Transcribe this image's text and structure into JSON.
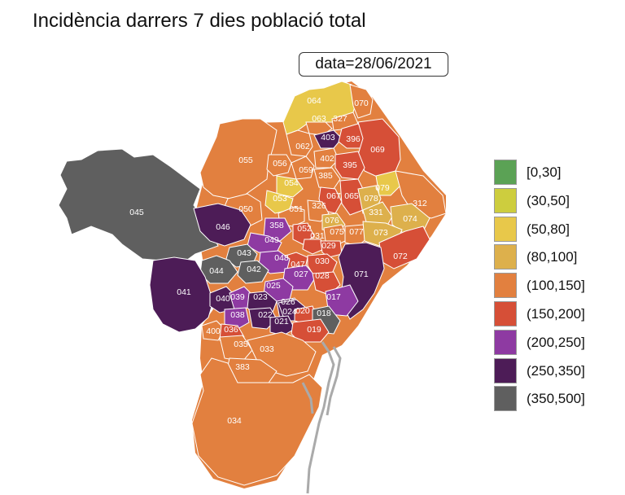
{
  "title": "Incidència darrers 7 dies població total",
  "date_label": "data=28/06/2021",
  "colors": {
    "c0": "#5ba255",
    "c1": "#cdcd3e",
    "c2": "#e8c84a",
    "c3": "#ddb04c",
    "c4": "#e2803f",
    "c5": "#d64f37",
    "c6": "#8e3aa2",
    "c7": "#4d1c57",
    "c8": "#5f5f5f",
    "port": "#aaaaaa",
    "border": "#ffffff"
  },
  "legend": [
    {
      "label": "[0,30]",
      "color": "#5ba255"
    },
    {
      "label": "(30,50]",
      "color": "#cdcd3e"
    },
    {
      "label": "(50,80]",
      "color": "#e8c84a"
    },
    {
      "label": "(80,100]",
      "color": "#ddb04c"
    },
    {
      "label": "(100,150]",
      "color": "#e2803f"
    },
    {
      "label": "(150,200]",
      "color": "#d64f37"
    },
    {
      "label": "(200,250]",
      "color": "#8e3aa2"
    },
    {
      "label": "(250,350]",
      "color": "#4d1c57"
    },
    {
      "label": "(350,500]",
      "color": "#5f5f5f"
    }
  ],
  "districts": [
    {
      "label": "064",
      "cls": "(50,80]"
    },
    {
      "label": "070",
      "cls": "(100,150]"
    },
    {
      "label": "063",
      "cls": "(100,150]"
    },
    {
      "label": "327",
      "cls": "(100,150]"
    },
    {
      "label": "403",
      "cls": "(250,350]"
    },
    {
      "label": "396",
      "cls": "(150,200]"
    },
    {
      "label": "069",
      "cls": "(150,200]"
    },
    {
      "label": "062",
      "cls": "(100,150]"
    },
    {
      "label": "055",
      "cls": "(100,150]"
    },
    {
      "label": "056",
      "cls": "(100,150]"
    },
    {
      "label": "059",
      "cls": "(100,150]"
    },
    {
      "label": "402",
      "cls": "(100,150]"
    },
    {
      "label": "395",
      "cls": "(150,200]"
    },
    {
      "label": "385",
      "cls": "(100,150]"
    },
    {
      "label": "054",
      "cls": "(50,80]"
    },
    {
      "label": "079",
      "cls": "(50,80]"
    },
    {
      "label": "312",
      "cls": "(100,150]"
    },
    {
      "label": "045",
      "cls": "(350,500]"
    },
    {
      "label": "053",
      "cls": "(50,80]"
    },
    {
      "label": "067",
      "cls": "(150,200]"
    },
    {
      "label": "065",
      "cls": "(150,200]"
    },
    {
      "label": "078",
      "cls": "(80,100]"
    },
    {
      "label": "331",
      "cls": "(80,100]"
    },
    {
      "label": "074",
      "cls": "(80,100]"
    },
    {
      "label": "050",
      "cls": "(100,150]"
    },
    {
      "label": "051",
      "cls": "(100,150]"
    },
    {
      "label": "326",
      "cls": "(100,150]"
    },
    {
      "label": "076",
      "cls": "(80,100]"
    },
    {
      "label": "046",
      "cls": "(250,350]"
    },
    {
      "label": "358",
      "cls": "(200,250]"
    },
    {
      "label": "052",
      "cls": "(150,200]"
    },
    {
      "label": "075",
      "cls": "(100,150]"
    },
    {
      "label": "077",
      "cls": "(100,150]"
    },
    {
      "label": "073",
      "cls": "(80,100]"
    },
    {
      "label": "049",
      "cls": "(200,250]"
    },
    {
      "label": "031",
      "cls": "(150,200]"
    },
    {
      "label": "029",
      "cls": "(150,200]"
    },
    {
      "label": "072",
      "cls": "(150,200]"
    },
    {
      "label": "043",
      "cls": "(350,500]"
    },
    {
      "label": "047",
      "cls": "(150,200]"
    },
    {
      "label": "048",
      "cls": "(200,250]"
    },
    {
      "label": "030",
      "cls": "(150,200]"
    },
    {
      "label": "044",
      "cls": "(350,500]"
    },
    {
      "label": "042",
      "cls": "(350,500]"
    },
    {
      "label": "027",
      "cls": "(200,250]"
    },
    {
      "label": "028",
      "cls": "(150,200]"
    },
    {
      "label": "071",
      "cls": "(250,350]"
    },
    {
      "label": "041",
      "cls": "(250,350]"
    },
    {
      "label": "025",
      "cls": "(200,250]"
    },
    {
      "label": "040",
      "cls": "(250,350]"
    },
    {
      "label": "039",
      "cls": "(200,250]"
    },
    {
      "label": "023",
      "cls": "(250,350]"
    },
    {
      "label": "026",
      "cls": "(250,350]"
    },
    {
      "label": "017",
      "cls": "(200,250]"
    },
    {
      "label": "024",
      "cls": "(250,350]"
    },
    {
      "label": "020",
      "cls": "(150,200]"
    },
    {
      "label": "018",
      "cls": "(350,500]"
    },
    {
      "label": "038",
      "cls": "(200,250]"
    },
    {
      "label": "022",
      "cls": "(250,350]"
    },
    {
      "label": "021",
      "cls": "(250,350]"
    },
    {
      "label": "400",
      "cls": "(100,150]"
    },
    {
      "label": "036",
      "cls": "(150,200]"
    },
    {
      "label": "019",
      "cls": "(150,200]"
    },
    {
      "label": "035",
      "cls": "(100,150]"
    },
    {
      "label": "033",
      "cls": "(100,150]"
    },
    {
      "label": "383",
      "cls": "(100,150]"
    },
    {
      "label": "034",
      "cls": "(100,150]"
    }
  ]
}
